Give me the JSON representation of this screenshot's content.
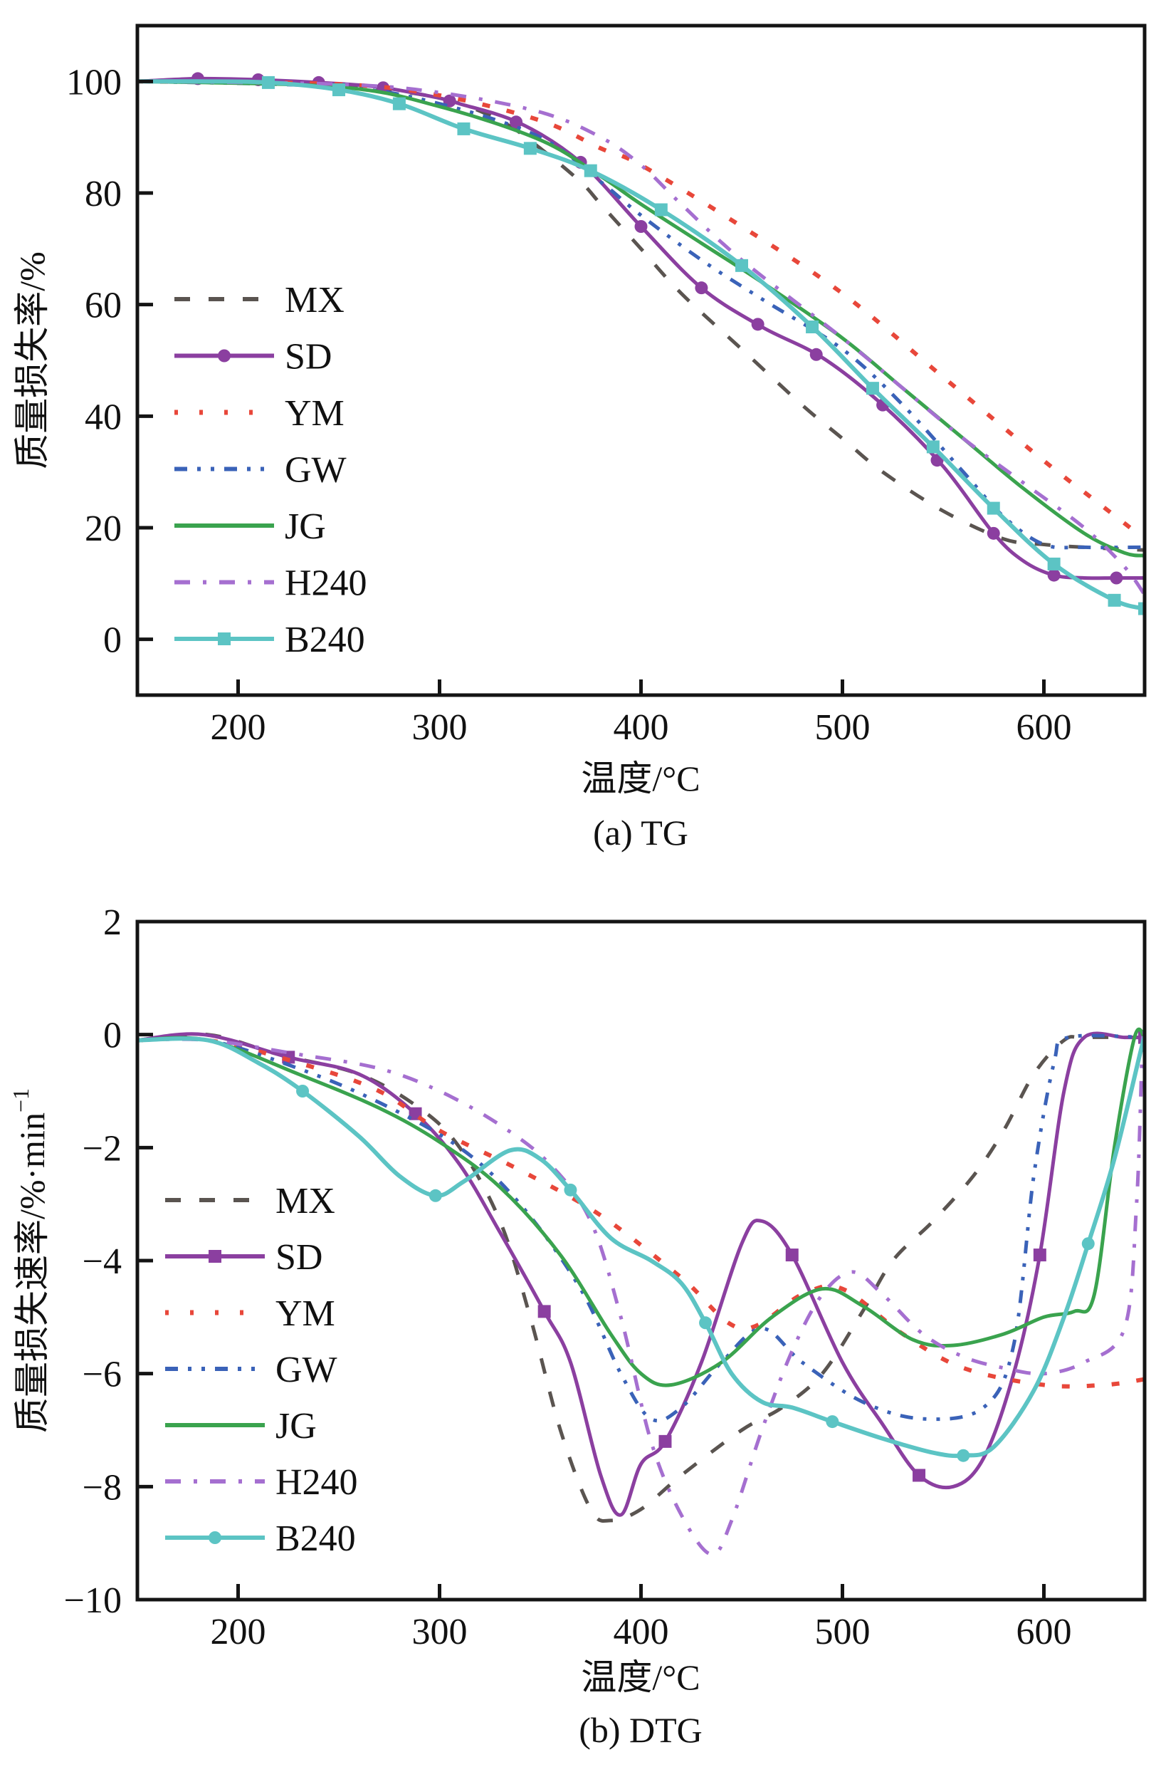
{
  "figure": {
    "captions": [
      "(a) TG",
      "(b) DTG"
    ]
  },
  "series_styles": [
    {
      "name": "MX",
      "color": "#5a5450",
      "dash": "dashed",
      "marker_tg": "none",
      "marker_dtg": "none"
    },
    {
      "name": "SD",
      "color": "#8b3fa0",
      "dash": "solid",
      "marker_tg": "circle",
      "marker_dtg": "square"
    },
    {
      "name": "YM",
      "color": "#e8473a",
      "dash": "dotted",
      "marker_tg": "none",
      "marker_dtg": "none"
    },
    {
      "name": "GW",
      "color": "#3a62b8",
      "dash": "dash-dot-dot",
      "marker_tg": "none",
      "marker_dtg": "none"
    },
    {
      "name": "JG",
      "color": "#3aa34e",
      "dash": "solid",
      "marker_tg": "none",
      "marker_dtg": "none"
    },
    {
      "name": "H240",
      "color": "#a56fd0",
      "dash": "dash-dot",
      "marker_tg": "none",
      "marker_dtg": "none"
    },
    {
      "name": "B240",
      "color": "#5cc4c4",
      "dash": "solid",
      "marker_tg": "square",
      "marker_dtg": "circle"
    }
  ],
  "chart_data": [
    {
      "id": "tg",
      "type": "line",
      "title": "(a) TG",
      "xlabel": "温度/°C",
      "ylabel": "质量损失率/%",
      "xlim": [
        150,
        650
      ],
      "ylim": [
        -10,
        110
      ],
      "xticks": [
        200,
        300,
        400,
        500,
        600
      ],
      "yticks": [
        0,
        20,
        40,
        60,
        80,
        100
      ],
      "grid": false,
      "legend_position": "center-left",
      "series": [
        {
          "name": "MX",
          "x": [
            150,
            200,
            250,
            300,
            330,
            350,
            370,
            380,
            400,
            420,
            450,
            480,
            500,
            520,
            550,
            580,
            600,
            620,
            650
          ],
          "y": [
            100,
            100,
            99.5,
            97,
            93,
            88,
            82,
            78,
            70,
            62,
            52,
            42,
            36,
            30,
            23,
            18,
            17,
            16.5,
            16
          ]
        },
        {
          "name": "SD",
          "x": [
            150,
            180,
            210,
            240,
            270,
            300,
            310,
            340,
            370,
            400,
            430,
            460,
            490,
            520,
            550,
            575,
            590,
            605,
            620,
            635,
            650
          ],
          "y": [
            100,
            100.5,
            100.3,
            99.8,
            99,
            97,
            96,
            92.5,
            85.5,
            74,
            63,
            56,
            50.5,
            42,
            31,
            19,
            14,
            11.5,
            11,
            11,
            11
          ],
          "markers": [
            180,
            210,
            240,
            272,
            305,
            338,
            370,
            400,
            430,
            458,
            487,
            520,
            547,
            575,
            605,
            636
          ]
        },
        {
          "name": "YM",
          "x": [
            150,
            250,
            300,
            350,
            380,
            400,
            450,
            500,
            550,
            600,
            625,
            650
          ],
          "y": [
            100,
            99.5,
            97.5,
            93,
            88,
            85,
            74,
            62,
            47,
            32,
            25,
            18
          ]
        },
        {
          "name": "GW",
          "x": [
            150,
            250,
            300,
            350,
            380,
            400,
            430,
            460,
            500,
            530,
            560,
            580,
            600,
            620,
            650
          ],
          "y": [
            100,
            99,
            96,
            90,
            82,
            76,
            68,
            61,
            52,
            42,
            30,
            22,
            17,
            16.5,
            16.5
          ]
        },
        {
          "name": "JG",
          "x": [
            150,
            250,
            300,
            350,
            380,
            400,
            430,
            460,
            500,
            530,
            560,
            590,
            620,
            640,
            650
          ],
          "y": [
            100,
            99,
            95.5,
            89.5,
            83,
            78,
            71,
            64,
            54,
            45,
            36,
            27,
            19,
            15.5,
            15
          ]
        },
        {
          "name": "H240",
          "x": [
            150,
            250,
            300,
            350,
            380,
            400,
            420,
            450,
            500,
            530,
            560,
            590,
            620,
            640,
            650
          ],
          "y": [
            100,
            99.5,
            98,
            94.5,
            90,
            85,
            78,
            68,
            54,
            45,
            36,
            28,
            20,
            13,
            8
          ]
        },
        {
          "name": "B240",
          "x": [
            150,
            180,
            215,
            250,
            280,
            312,
            345,
            375,
            410,
            450,
            485,
            515,
            545,
            575,
            605,
            635,
            650
          ],
          "y": [
            100,
            100,
            99.8,
            98.5,
            96,
            91.5,
            88,
            84,
            77,
            67,
            56,
            45,
            34.5,
            23.5,
            13.5,
            7,
            5.5
          ],
          "markers": [
            215,
            250,
            280,
            312,
            345,
            375,
            410,
            450,
            485,
            515,
            545,
            575,
            605,
            635,
            650
          ]
        }
      ]
    },
    {
      "id": "dtg",
      "type": "line",
      "title": "(b) DTG",
      "xlabel": "温度/°C",
      "ylabel": "质量损失速率/%·min",
      "ylabel_superscript": "−1",
      "xlim": [
        150,
        650
      ],
      "ylim": [
        -10,
        2
      ],
      "xticks": [
        200,
        300,
        400,
        500,
        600
      ],
      "yticks": [
        2,
        0,
        -2,
        -4,
        -6,
        -8,
        -10
      ],
      "ytick_labels": [
        "2",
        "0",
        "−2",
        "−4",
        "−6",
        "−8",
        "−10"
      ],
      "grid": false,
      "legend_position": "center-left",
      "series": [
        {
          "name": "MX",
          "x": [
            150,
            185,
            220,
            260,
            290,
            310,
            330,
            345,
            360,
            375,
            385,
            400,
            420,
            450,
            470,
            490,
            510,
            525,
            545,
            565,
            580,
            595,
            610,
            620,
            650
          ],
          "y": [
            -0.1,
            0,
            -0.35,
            -0.7,
            -1.3,
            -2.0,
            -3.3,
            -5.0,
            -7.0,
            -8.4,
            -8.6,
            -8.4,
            -7.8,
            -7.0,
            -6.6,
            -6.0,
            -4.9,
            -4.0,
            -3.3,
            -2.5,
            -1.7,
            -0.7,
            -0.1,
            -0.05,
            -0.05
          ]
        },
        {
          "name": "SD",
          "x": [
            150,
            183,
            225,
            260,
            288,
            310,
            330,
            352,
            365,
            380,
            390,
            400,
            412,
            430,
            450,
            460,
            475,
            500,
            520,
            538,
            555,
            570,
            585,
            598,
            610,
            620,
            640,
            650
          ],
          "y": [
            -0.1,
            0,
            -0.4,
            -0.7,
            -1.4,
            -2.3,
            -3.5,
            -4.9,
            -5.8,
            -7.8,
            -8.5,
            -7.6,
            -7.2,
            -5.8,
            -3.7,
            -3.3,
            -3.9,
            -5.8,
            -6.9,
            -7.8,
            -8.0,
            -7.5,
            -6.0,
            -3.9,
            -1.0,
            -0.05,
            -0.05,
            -0.05
          ],
          "markers": [
            225,
            288,
            352,
            412,
            475,
            538,
            598,
            650
          ]
        },
        {
          "name": "YM",
          "x": [
            150,
            185,
            230,
            270,
            300,
            340,
            380,
            420,
            450,
            480,
            500,
            530,
            560,
            600,
            630,
            650
          ],
          "y": [
            -0.1,
            -0.1,
            -0.5,
            -1.0,
            -1.7,
            -2.4,
            -3.2,
            -4.3,
            -5.2,
            -4.6,
            -4.5,
            -5.3,
            -5.9,
            -6.2,
            -6.2,
            -6.1
          ]
        },
        {
          "name": "GW",
          "x": [
            150,
            185,
            230,
            270,
            310,
            340,
            370,
            390,
            405,
            420,
            440,
            460,
            480,
            510,
            540,
            570,
            585,
            595,
            605,
            612,
            650
          ],
          "y": [
            -0.1,
            -0.1,
            -0.6,
            -1.2,
            -2.0,
            -3.0,
            -4.5,
            -6.0,
            -6.8,
            -6.6,
            -5.8,
            -5.2,
            -5.8,
            -6.5,
            -6.8,
            -6.6,
            -5.5,
            -2.5,
            -0.5,
            -0.05,
            -0.05
          ]
        },
        {
          "name": "JG",
          "x": [
            150,
            185,
            230,
            270,
            300,
            330,
            360,
            385,
            400,
            415,
            440,
            465,
            490,
            510,
            535,
            555,
            580,
            600,
            615,
            625,
            635,
            645,
            650
          ],
          "y": [
            -0.1,
            -0.1,
            -0.7,
            -1.3,
            -1.9,
            -2.7,
            -3.9,
            -5.3,
            -6.0,
            -6.2,
            -5.8,
            -5.0,
            -4.5,
            -4.8,
            -5.4,
            -5.5,
            -5.3,
            -5.0,
            -4.9,
            -4.6,
            -2.0,
            -0.05,
            -0.05
          ]
        },
        {
          "name": "H240",
          "x": [
            150,
            185,
            230,
            270,
            300,
            330,
            355,
            375,
            390,
            405,
            420,
            435,
            445,
            460,
            475,
            490,
            505,
            520,
            540,
            560,
            580,
            600,
            620,
            640,
            646,
            649,
            650
          ],
          "y": [
            -0.1,
            -0.1,
            -0.35,
            -0.6,
            -1.0,
            -1.6,
            -2.3,
            -3.3,
            -5.0,
            -7.2,
            -8.5,
            -9.2,
            -8.6,
            -7.0,
            -5.6,
            -4.6,
            -4.2,
            -4.6,
            -5.3,
            -5.7,
            -5.9,
            -6.0,
            -5.8,
            -5.2,
            -3.0,
            -0.1,
            -0.05
          ]
        },
        {
          "name": "B240",
          "x": [
            150,
            185,
            210,
            232,
            260,
            280,
            298,
            312,
            335,
            350,
            365,
            385,
            405,
            420,
            432,
            445,
            460,
            475,
            495,
            520,
            545,
            560,
            575,
            595,
            610,
            622,
            635,
            648,
            650
          ],
          "y": [
            -0.1,
            -0.1,
            -0.5,
            -1.0,
            -1.8,
            -2.5,
            -2.85,
            -2.6,
            -2.05,
            -2.2,
            -2.75,
            -3.6,
            -4.0,
            -4.4,
            -5.1,
            -6.0,
            -6.5,
            -6.6,
            -6.85,
            -7.15,
            -7.4,
            -7.45,
            -7.3,
            -6.3,
            -5.0,
            -3.7,
            -2.2,
            -0.3,
            -0.05
          ],
          "markers": [
            232,
            298,
            365,
            432,
            495,
            560,
            622
          ]
        }
      ]
    }
  ]
}
